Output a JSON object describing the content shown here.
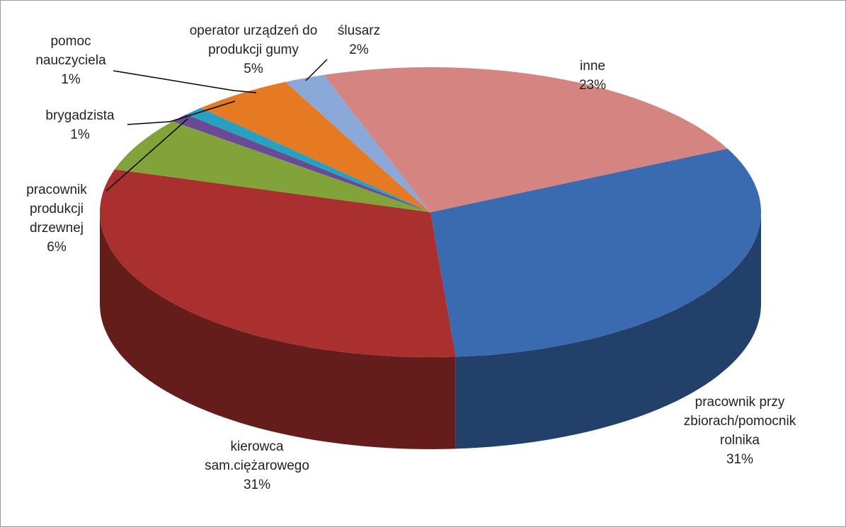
{
  "chart_data": {
    "type": "pie3d",
    "categories": [
      "pracownik przy zbiorach/pomocnik rolnika",
      "kierowca sam.ciężarowego",
      "pracownik produkcji drzewnej",
      "brygadzista",
      "pomoc nauczyciela",
      "operator urządzeń do produkcji gumy",
      "ślusarz",
      "inne"
    ],
    "values": [
      31,
      31,
      6,
      1,
      1,
      5,
      2,
      23
    ],
    "value_labels": [
      "31%",
      "31%",
      "6%",
      "1%",
      "1%",
      "5%",
      "2%",
      "23%"
    ],
    "colors": [
      "#3a6bb0",
      "#a9302f",
      "#82a23a",
      "#6a4a94",
      "#2aa0c0",
      "#e67a22",
      "#8aa9d8",
      "#d48582"
    ]
  }
}
